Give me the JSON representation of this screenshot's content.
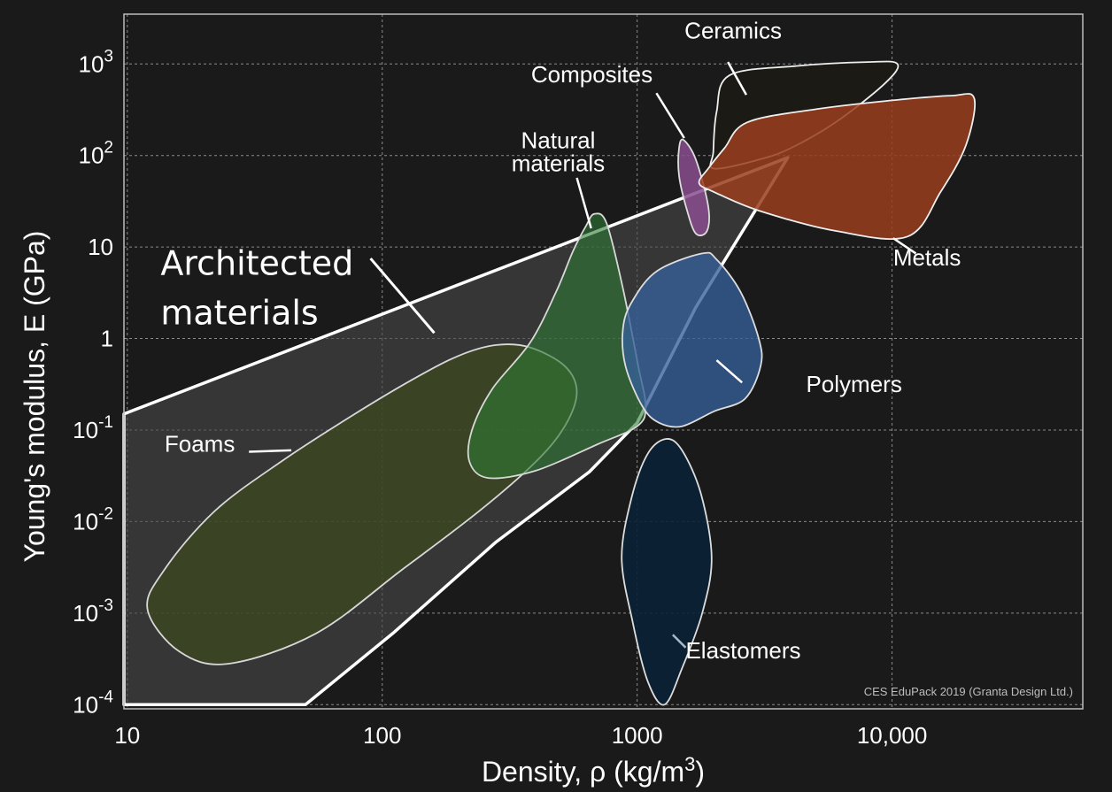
{
  "chart_data": {
    "type": "scatter",
    "subtype": "material property chart (bubble regions, log-log)",
    "xlabel": "Density, ρ  (kg/m3)",
    "xlabel_parts": {
      "main": "Density, ρ  (kg/m",
      "sup": "3",
      "close": ")"
    },
    "ylabel": "Young's modulus, E (GPa)",
    "xscale": "log",
    "yscale": "log",
    "xlim": [
      9.7,
      56000
    ],
    "ylim": [
      9e-05,
      3500
    ],
    "grid": true,
    "x_ticks": [
      {
        "value": 10,
        "label": "10"
      },
      {
        "value": 100,
        "label": "100"
      },
      {
        "value": 1000,
        "label": "1000"
      },
      {
        "value": 10000,
        "label": "10,000"
      }
    ],
    "y_ticks": [
      {
        "value": 0.0001,
        "base": "10",
        "exp": "-4"
      },
      {
        "value": 0.001,
        "base": "10",
        "exp": "-3"
      },
      {
        "value": 0.01,
        "base": "10",
        "exp": "-2"
      },
      {
        "value": 0.1,
        "base": "10",
        "exp": "-1"
      },
      {
        "value": 1,
        "base": "1",
        "exp": ""
      },
      {
        "value": 10,
        "base": "10",
        "exp": ""
      },
      {
        "value": 100,
        "base": "10",
        "exp": "2"
      },
      {
        "value": 1000,
        "base": "10",
        "exp": "3"
      }
    ],
    "regions": [
      {
        "name": "Foams",
        "fill": "#3b4a1f",
        "opacity": 0.72,
        "outline": "#d8d8d8",
        "label": {
          "x": 14,
          "y": 0.058,
          "anchor": "start"
        },
        "leader": [
          [
            30,
            0.058
          ],
          [
            44,
            0.06
          ]
        ],
        "points": [
          [
            12,
            0.0011
          ],
          [
            14,
            0.003
          ],
          [
            22,
            0.013
          ],
          [
            40,
            0.045
          ],
          [
            75,
            0.14
          ],
          [
            130,
            0.35
          ],
          [
            200,
            0.65
          ],
          [
            280,
            0.85
          ],
          [
            380,
            0.8
          ],
          [
            520,
            0.5
          ],
          [
            580,
            0.26
          ],
          [
            520,
            0.11
          ],
          [
            400,
            0.045
          ],
          [
            240,
            0.013
          ],
          [
            120,
            0.003
          ],
          [
            55,
            0.0006
          ],
          [
            25,
            0.00028
          ],
          [
            16,
            0.00038
          ]
        ]
      },
      {
        "name": "Natural materials",
        "label_lines": [
          "Natural",
          "materials"
        ],
        "fill": "#2e7a33",
        "opacity": 0.6,
        "outline": "#d8d8d8",
        "label": {
          "x": 490,
          "y": 120,
          "anchor": "middle"
        },
        "leader": [
          [
            580,
            57
          ],
          [
            660,
            16
          ]
        ],
        "points": [
          [
            680,
            23
          ],
          [
            760,
            18
          ],
          [
            880,
            3.5
          ],
          [
            1010,
            0.5
          ],
          [
            1080,
            0.18
          ],
          [
            1000,
            0.11
          ],
          [
            700,
            0.07
          ],
          [
            400,
            0.036
          ],
          [
            260,
            0.03
          ],
          [
            220,
            0.045
          ],
          [
            225,
            0.1
          ],
          [
            270,
            0.28
          ],
          [
            380,
            0.9
          ],
          [
            480,
            3.2
          ],
          [
            560,
            9
          ],
          [
            630,
            17
          ]
        ]
      },
      {
        "name": "Elastomers",
        "fill": "#0a2236",
        "opacity": 0.9,
        "outline": "#dddddd",
        "label": {
          "x": 1550,
          "y": 0.00032,
          "anchor": "start"
        },
        "leader": [
          [
            1380,
            0.00058
          ],
          [
            1550,
            0.00042
          ]
        ],
        "points": [
          [
            1300,
            0.08
          ],
          [
            1500,
            0.06
          ],
          [
            1780,
            0.02
          ],
          [
            1960,
            0.004
          ],
          [
            1800,
            0.001
          ],
          [
            1500,
            0.00025
          ],
          [
            1280,
            0.0001
          ],
          [
            1100,
            0.00018
          ],
          [
            960,
            0.0008
          ],
          [
            870,
            0.004
          ],
          [
            950,
            0.018
          ],
          [
            1100,
            0.055
          ]
        ]
      },
      {
        "name": "Polymers",
        "fill": "#36609a",
        "opacity": 0.78,
        "outline": "#dddddd",
        "label": {
          "x": 4600,
          "y": 0.26,
          "anchor": "start"
        },
        "leader": [
          [
            2050,
            0.58
          ],
          [
            2580,
            0.33
          ]
        ],
        "points": [
          [
            1800,
            8.5
          ],
          [
            2050,
            7.3
          ],
          [
            2550,
            3.2
          ],
          [
            3000,
            1.0
          ],
          [
            3050,
            0.5
          ],
          [
            2650,
            0.22
          ],
          [
            2000,
            0.16
          ],
          [
            1500,
            0.11
          ],
          [
            1220,
            0.12
          ],
          [
            1050,
            0.18
          ],
          [
            900,
            0.5
          ],
          [
            880,
            1.3
          ],
          [
            960,
            2.6
          ],
          [
            1200,
            5.5
          ]
        ]
      },
      {
        "name": "Composites",
        "fill": "#8a4f8e",
        "opacity": 0.85,
        "outline": "#dddddd",
        "label": {
          "x": 1150,
          "y": 630,
          "anchor": "end"
        },
        "leader": [
          [
            1190,
            480
          ],
          [
            1530,
            155
          ]
        ],
        "points": [
          [
            1520,
            148
          ],
          [
            1700,
            90
          ],
          [
            1900,
            28
          ],
          [
            1880,
            15
          ],
          [
            1700,
            14
          ],
          [
            1570,
            25
          ],
          [
            1460,
            60
          ],
          [
            1460,
            120
          ]
        ]
      },
      {
        "name": "Ceramics",
        "fill": "#1c1a14",
        "opacity": 0.95,
        "outline": "#eeeeee",
        "label": {
          "x": 2380,
          "y": 1900,
          "anchor": "middle"
        },
        "leader": [
          [
            2270,
            1050
          ],
          [
            2680,
            460
          ]
        ],
        "points": [
          [
            2300,
            750
          ],
          [
            4200,
            950
          ],
          [
            8000,
            1050
          ],
          [
            10500,
            1000
          ],
          [
            9300,
            600
          ],
          [
            6000,
            230
          ],
          [
            4000,
            120
          ],
          [
            3000,
            90
          ],
          [
            2000,
            72
          ],
          [
            1990,
            110
          ],
          [
            2050,
            300
          ]
        ]
      },
      {
        "name": "Metals",
        "fill": "#9a3e1e",
        "opacity": 0.85,
        "outline": "#eeeeee",
        "label": {
          "x": 10100,
          "y": 6.3,
          "anchor": "start"
        },
        "leader": [
          [
            12400,
            8.5
          ],
          [
            10100,
            12.5
          ]
        ],
        "points": [
          [
            2700,
            230
          ],
          [
            5000,
            320
          ],
          [
            10000,
            400
          ],
          [
            17000,
            450
          ],
          [
            21000,
            420
          ],
          [
            19500,
            130
          ],
          [
            15500,
            40
          ],
          [
            11500,
            13
          ],
          [
            6000,
            15
          ],
          [
            3000,
            25
          ],
          [
            2000,
            40
          ],
          [
            1750,
            50
          ],
          [
            1900,
            72
          ],
          [
            2200,
            120
          ]
        ]
      }
    ],
    "envelope": {
      "name": "Architected materials",
      "label_lines": [
        "Architected",
        "materials"
      ],
      "label": {
        "x": 13.5,
        "y": 5,
        "anchor": "start"
      },
      "leader": [
        [
          90,
          7.5
        ],
        [
          160,
          1.15
        ]
      ],
      "fill": "#4a4a4a",
      "opacity": 0.6,
      "outline": "#ffffff",
      "points": [
        [
          9.7,
          0.15
        ],
        [
          3900,
          95
        ],
        [
          1700,
          2.2
        ],
        [
          1000,
          0.12
        ],
        [
          650,
          0.035
        ],
        [
          280,
          0.006
        ],
        [
          110,
          0.0006
        ],
        [
          50,
          0.0001
        ],
        [
          9.7,
          0.0001
        ]
      ]
    },
    "credit": "CES EduPack 2019 (Granta Design Ltd.)"
  }
}
